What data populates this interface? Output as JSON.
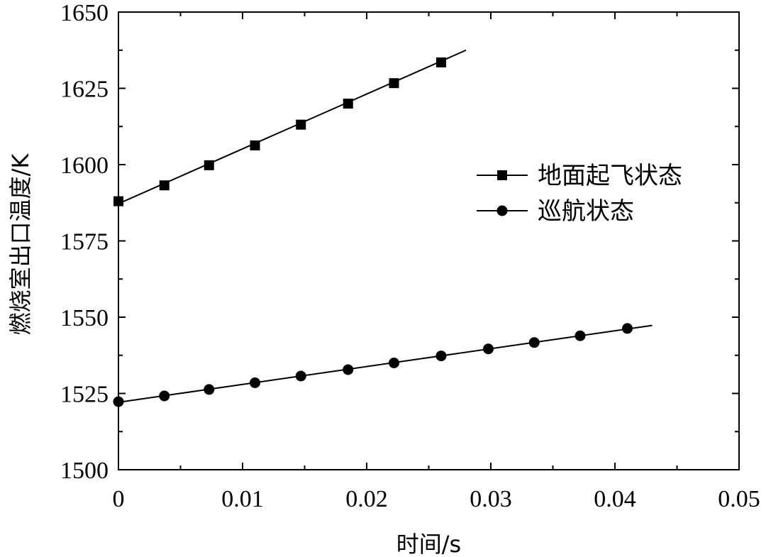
{
  "chart_data": {
    "type": "line",
    "title": "",
    "xlabel": "时间/s",
    "ylabel": "燃烧室出口温度/K",
    "xlim": [
      0,
      0.05
    ],
    "ylim": [
      1500,
      1650
    ],
    "xticks": [
      "0",
      "0.01",
      "0.02",
      "0.03",
      "0.04",
      "0.05"
    ],
    "xtick_values": [
      0,
      0.01,
      0.02,
      0.03,
      0.04,
      0.05
    ],
    "yticks": [
      "1500",
      "1525",
      "1550",
      "1575",
      "1600",
      "1625",
      "1650"
    ],
    "ytick_values": [
      1500,
      1525,
      1550,
      1575,
      1600,
      1625,
      1650
    ],
    "grid": false,
    "legend_position": "center-right",
    "series": [
      {
        "name": "地面起飞状态",
        "marker": "square",
        "color": "#000000",
        "x": [
          0,
          0.0037,
          0.0073,
          0.011,
          0.0147,
          0.0185,
          0.0222,
          0.026
        ],
        "y": [
          1588,
          1593.2,
          1599.8,
          1606.3,
          1613.1,
          1620,
          1626.7,
          1633.5
        ],
        "fit_line": {
          "x": [
            0,
            0.028
          ],
          "y": [
            1587.2,
            1637.5
          ]
        }
      },
      {
        "name": "巡航状态",
        "marker": "circle",
        "color": "#000000",
        "x": [
          0,
          0.0037,
          0.0073,
          0.011,
          0.0147,
          0.0185,
          0.0222,
          0.026,
          0.0298,
          0.0335,
          0.0372,
          0.041
        ],
        "y": [
          1522.3,
          1524.2,
          1526.3,
          1528.5,
          1530.7,
          1532.8,
          1535,
          1537.3,
          1539.6,
          1541.7,
          1543.9,
          1546.3
        ],
        "fit_line": {
          "x": [
            0,
            0.043
          ],
          "y": [
            1522.1,
            1547.3
          ]
        }
      }
    ]
  }
}
